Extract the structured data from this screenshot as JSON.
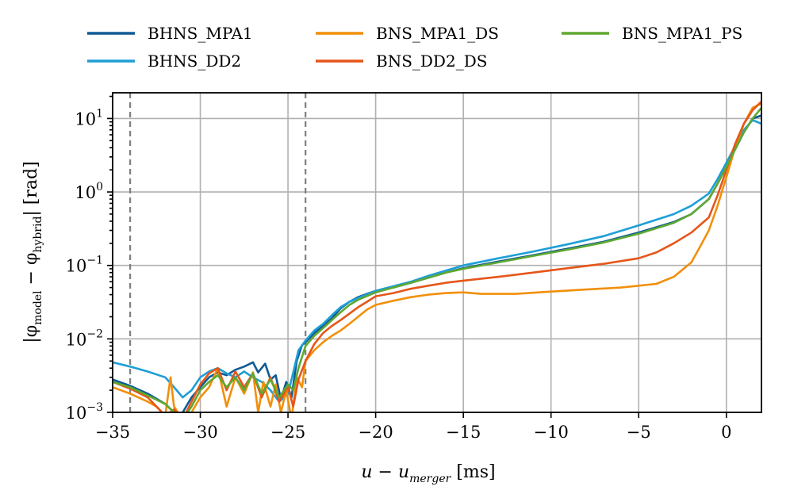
{
  "chart_data": {
    "type": "line",
    "xlabel": {
      "main": "u − u",
      "sub": "merger",
      "unit": " [ms]"
    },
    "ylabel": {
      "main": "|φ",
      "sub1": "model",
      "mid": " − φ",
      "sub2": "hybrid",
      "unit": "| [rad]"
    },
    "xlim": [
      -35,
      2
    ],
    "ylim_log10": [
      -3,
      1.35
    ],
    "xscale": "linear",
    "yscale": "log",
    "grid": true,
    "legend_position": "top, outside, 3 columns",
    "x_ticks": [
      {
        "value": -35,
        "label": "−35"
      },
      {
        "value": -30,
        "label": "−30"
      },
      {
        "value": -25,
        "label": "−25"
      },
      {
        "value": -20,
        "label": "−20"
      },
      {
        "value": -15,
        "label": "−15"
      },
      {
        "value": -10,
        "label": "−10"
      },
      {
        "value": -5,
        "label": "−5"
      },
      {
        "value": 0,
        "label": "0"
      }
    ],
    "y_ticks": [
      {
        "exp": 1,
        "base": "10",
        "sup": "1"
      },
      {
        "exp": 0,
        "base": "10",
        "sup": "0"
      },
      {
        "exp": -1,
        "base": "10",
        "sup": "−1"
      },
      {
        "exp": -2,
        "base": "10",
        "sup": "−2"
      },
      {
        "exp": -3,
        "base": "10",
        "sup": "−3"
      }
    ],
    "vertical_lines": [
      -34,
      -24
    ],
    "series": [
      {
        "name": "BHNS_MPA1",
        "color": "#0e5a96",
        "points": [
          [
            -35,
            0.0028
          ],
          [
            -34,
            0.0023
          ],
          [
            -33,
            0.0018
          ],
          [
            -32,
            0.0013
          ],
          [
            -31.3,
            0.0009
          ],
          [
            -31,
            0.001
          ],
          [
            -30.5,
            0.0016
          ],
          [
            -30,
            0.0022
          ],
          [
            -29.5,
            0.003
          ],
          [
            -29,
            0.0035
          ],
          [
            -28.5,
            0.0032
          ],
          [
            -28,
            0.0038
          ],
          [
            -27.5,
            0.0042
          ],
          [
            -27,
            0.0048
          ],
          [
            -26.7,
            0.0035
          ],
          [
            -26.3,
            0.0046
          ],
          [
            -26,
            0.0028
          ],
          [
            -25.7,
            0.0032
          ],
          [
            -25.4,
            0.0015
          ],
          [
            -25.1,
            0.0026
          ],
          [
            -24.8,
            0.0016
          ],
          [
            -24.5,
            0.005
          ],
          [
            -24.2,
            0.0082
          ],
          [
            -24,
            0.009
          ],
          [
            -23.5,
            0.012
          ],
          [
            -23,
            0.015
          ],
          [
            -22.5,
            0.019
          ],
          [
            -22,
            0.026
          ],
          [
            -21.5,
            0.032
          ],
          [
            -21,
            0.037
          ],
          [
            -20.5,
            0.041
          ],
          [
            -20,
            0.045
          ],
          [
            -19,
            0.05
          ],
          [
            -18,
            0.058
          ],
          [
            -17,
            0.068
          ],
          [
            -16,
            0.08
          ],
          [
            -15,
            0.092
          ],
          [
            -13,
            0.113
          ],
          [
            -11,
            0.138
          ],
          [
            -9,
            0.17
          ],
          [
            -7,
            0.21
          ],
          [
            -5,
            0.28
          ],
          [
            -3,
            0.39
          ],
          [
            -2,
            0.5
          ],
          [
            -1,
            0.8
          ],
          [
            -0.5,
            1.3
          ],
          [
            0,
            2.2
          ],
          [
            0.5,
            3.8
          ],
          [
            1,
            6.5
          ],
          [
            1.5,
            10.0
          ],
          [
            2,
            11.0
          ]
        ]
      },
      {
        "name": "BHNS_DD2",
        "color": "#1e9fd6",
        "points": [
          [
            -35,
            0.0048
          ],
          [
            -34,
            0.0042
          ],
          [
            -33,
            0.0036
          ],
          [
            -32,
            0.003
          ],
          [
            -31.5,
            0.0022
          ],
          [
            -31,
            0.0016
          ],
          [
            -30.5,
            0.002
          ],
          [
            -30,
            0.003
          ],
          [
            -29.5,
            0.0036
          ],
          [
            -29,
            0.004
          ],
          [
            -28.5,
            0.0034
          ],
          [
            -28,
            0.003
          ],
          [
            -27.5,
            0.0036
          ],
          [
            -27,
            0.003
          ],
          [
            -26.5,
            0.0026
          ],
          [
            -26,
            0.002
          ],
          [
            -25.5,
            0.0014
          ],
          [
            -25,
            0.0018
          ],
          [
            -24.7,
            0.0035
          ],
          [
            -24.4,
            0.007
          ],
          [
            -24,
            0.0095
          ],
          [
            -23.5,
            0.013
          ],
          [
            -23,
            0.016
          ],
          [
            -22.5,
            0.021
          ],
          [
            -22,
            0.027
          ],
          [
            -21.5,
            0.032
          ],
          [
            -21,
            0.036
          ],
          [
            -20,
            0.045
          ],
          [
            -19,
            0.052
          ],
          [
            -18,
            0.06
          ],
          [
            -17,
            0.072
          ],
          [
            -16,
            0.085
          ],
          [
            -15,
            0.1
          ],
          [
            -13,
            0.125
          ],
          [
            -11,
            0.155
          ],
          [
            -9,
            0.195
          ],
          [
            -7,
            0.25
          ],
          [
            -5,
            0.35
          ],
          [
            -3,
            0.5
          ],
          [
            -2,
            0.65
          ],
          [
            -1,
            0.95
          ],
          [
            -0.5,
            1.5
          ],
          [
            0,
            2.5
          ],
          [
            0.5,
            4.2
          ],
          [
            1,
            7.0
          ],
          [
            1.5,
            9.5
          ],
          [
            2,
            8.5
          ]
        ]
      },
      {
        "name": "BNS_MPA1_DS",
        "color": "#f28f0a",
        "points": [
          [
            -35,
            0.0022
          ],
          [
            -34,
            0.0018
          ],
          [
            -33,
            0.0014
          ],
          [
            -32.5,
            0.0012
          ],
          [
            -32,
            0.0009
          ],
          [
            -31.7,
            0.003
          ],
          [
            -31.5,
            0.0012
          ],
          [
            -31,
            0.0008
          ],
          [
            -30.5,
            0.001
          ],
          [
            -30,
            0.0016
          ],
          [
            -29.5,
            0.0022
          ],
          [
            -29,
            0.004
          ],
          [
            -28.5,
            0.0012
          ],
          [
            -28,
            0.003
          ],
          [
            -27.5,
            0.0018
          ],
          [
            -27,
            0.0035
          ],
          [
            -26.7,
            0.001
          ],
          [
            -26.4,
            0.0026
          ],
          [
            -26,
            0.0012
          ],
          [
            -25.7,
            0.0024
          ],
          [
            -25.4,
            0.001
          ],
          [
            -25.1,
            0.002
          ],
          [
            -24.8,
            0.0008
          ],
          [
            -24.5,
            0.003
          ],
          [
            -24.2,
            0.0022
          ],
          [
            -24,
            0.005
          ],
          [
            -23.5,
            0.007
          ],
          [
            -23,
            0.009
          ],
          [
            -22.5,
            0.011
          ],
          [
            -22,
            0.013
          ],
          [
            -21.5,
            0.016
          ],
          [
            -21,
            0.02
          ],
          [
            -20.5,
            0.025
          ],
          [
            -20,
            0.029
          ],
          [
            -19,
            0.033
          ],
          [
            -18,
            0.037
          ],
          [
            -17,
            0.04
          ],
          [
            -16,
            0.042
          ],
          [
            -15,
            0.043
          ],
          [
            -14,
            0.041
          ],
          [
            -12,
            0.041
          ],
          [
            -10,
            0.044
          ],
          [
            -8,
            0.047
          ],
          [
            -6,
            0.05
          ],
          [
            -4,
            0.056
          ],
          [
            -3,
            0.07
          ],
          [
            -2,
            0.11
          ],
          [
            -1.5,
            0.18
          ],
          [
            -1,
            0.3
          ],
          [
            -0.5,
            0.65
          ],
          [
            0,
            1.6
          ],
          [
            0.5,
            4.0
          ],
          [
            1,
            8.5
          ],
          [
            1.5,
            14.0
          ],
          [
            2,
            16.0
          ]
        ]
      },
      {
        "name": "BNS_DD2_DS",
        "color": "#e5561a",
        "points": [
          [
            -35,
            0.0026
          ],
          [
            -34,
            0.0021
          ],
          [
            -33,
            0.0016
          ],
          [
            -32.5,
            0.0012
          ],
          [
            -32,
            0.0009
          ],
          [
            -31.5,
            0.0011
          ],
          [
            -31,
            0.0008
          ],
          [
            -30.5,
            0.0014
          ],
          [
            -30,
            0.0024
          ],
          [
            -29.5,
            0.0034
          ],
          [
            -29,
            0.004
          ],
          [
            -28.5,
            0.002
          ],
          [
            -28,
            0.0036
          ],
          [
            -27.5,
            0.0022
          ],
          [
            -27,
            0.0034
          ],
          [
            -26.5,
            0.0016
          ],
          [
            -26,
            0.003
          ],
          [
            -25.5,
            0.0014
          ],
          [
            -25,
            0.0022
          ],
          [
            -24.7,
            0.0012
          ],
          [
            -24.4,
            0.0028
          ],
          [
            -24,
            0.005
          ],
          [
            -23.5,
            0.0085
          ],
          [
            -23,
            0.012
          ],
          [
            -22.5,
            0.015
          ],
          [
            -22,
            0.018
          ],
          [
            -21.5,
            0.022
          ],
          [
            -21,
            0.027
          ],
          [
            -20.5,
            0.032
          ],
          [
            -20,
            0.038
          ],
          [
            -19,
            0.042
          ],
          [
            -18,
            0.048
          ],
          [
            -17,
            0.053
          ],
          [
            -16,
            0.058
          ],
          [
            -15,
            0.062
          ],
          [
            -13,
            0.07
          ],
          [
            -11,
            0.08
          ],
          [
            -9,
            0.092
          ],
          [
            -7,
            0.105
          ],
          [
            -5,
            0.125
          ],
          [
            -4,
            0.15
          ],
          [
            -3,
            0.2
          ],
          [
            -2,
            0.28
          ],
          [
            -1,
            0.45
          ],
          [
            -0.5,
            0.9
          ],
          [
            0,
            2.0
          ],
          [
            0.5,
            4.5
          ],
          [
            1,
            8.5
          ],
          [
            1.5,
            13.0
          ],
          [
            2,
            17.0
          ]
        ]
      },
      {
        "name": "BNS_MPA1_PS",
        "color": "#5fa831",
        "points": [
          [
            -35,
            0.0026
          ],
          [
            -34,
            0.0022
          ],
          [
            -33,
            0.0017
          ],
          [
            -32,
            0.0013
          ],
          [
            -31.5,
            0.001
          ],
          [
            -31,
            0.0008
          ],
          [
            -30.5,
            0.0012
          ],
          [
            -30,
            0.002
          ],
          [
            -29.5,
            0.0026
          ],
          [
            -29,
            0.0032
          ],
          [
            -28.5,
            0.0022
          ],
          [
            -28,
            0.003
          ],
          [
            -27.5,
            0.002
          ],
          [
            -27,
            0.0034
          ],
          [
            -26.5,
            0.0018
          ],
          [
            -26,
            0.0028
          ],
          [
            -25.5,
            0.0016
          ],
          [
            -25,
            0.0024
          ],
          [
            -24.7,
            0.002
          ],
          [
            -24.4,
            0.004
          ],
          [
            -24,
            0.008
          ],
          [
            -23.5,
            0.011
          ],
          [
            -23,
            0.014
          ],
          [
            -22.5,
            0.018
          ],
          [
            -22,
            0.023
          ],
          [
            -21.5,
            0.029
          ],
          [
            -21,
            0.034
          ],
          [
            -20,
            0.043
          ],
          [
            -19,
            0.05
          ],
          [
            -18,
            0.058
          ],
          [
            -17,
            0.068
          ],
          [
            -16,
            0.08
          ],
          [
            -15,
            0.09
          ],
          [
            -13,
            0.11
          ],
          [
            -11,
            0.135
          ],
          [
            -9,
            0.165
          ],
          [
            -7,
            0.205
          ],
          [
            -5,
            0.27
          ],
          [
            -3,
            0.38
          ],
          [
            -2,
            0.5
          ],
          [
            -1,
            0.8
          ],
          [
            -0.5,
            1.3
          ],
          [
            0,
            2.2
          ],
          [
            0.5,
            3.8
          ],
          [
            1,
            6.5
          ],
          [
            1.5,
            10.0
          ],
          [
            2,
            14.0
          ]
        ]
      }
    ]
  }
}
